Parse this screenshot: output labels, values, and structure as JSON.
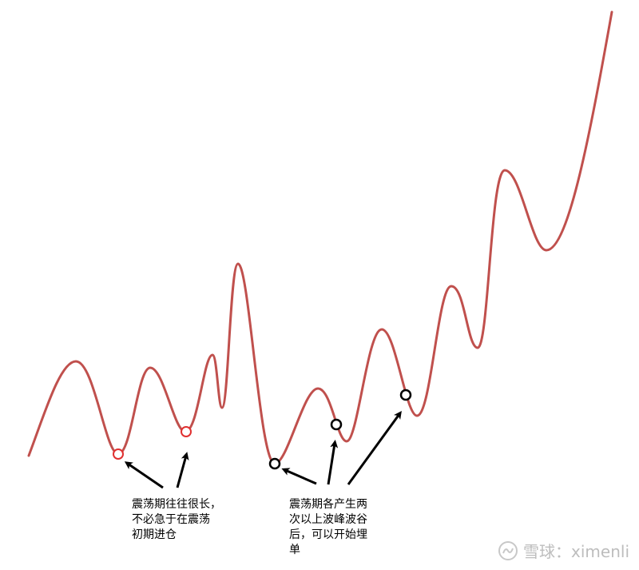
{
  "notes": {
    "left": "震荡期往往很长，\n不必急于在震荡\n初期进仓",
    "right": "震荡期各产生两\n次以上波峰波谷\n后，可以开始埋\n单"
  },
  "watermark": {
    "text": "雪球：ximenli"
  },
  "colors": {
    "curve": "#c0504d",
    "point_low": "#e03030",
    "point_buy": "#000000",
    "arrow": "#000000"
  }
}
